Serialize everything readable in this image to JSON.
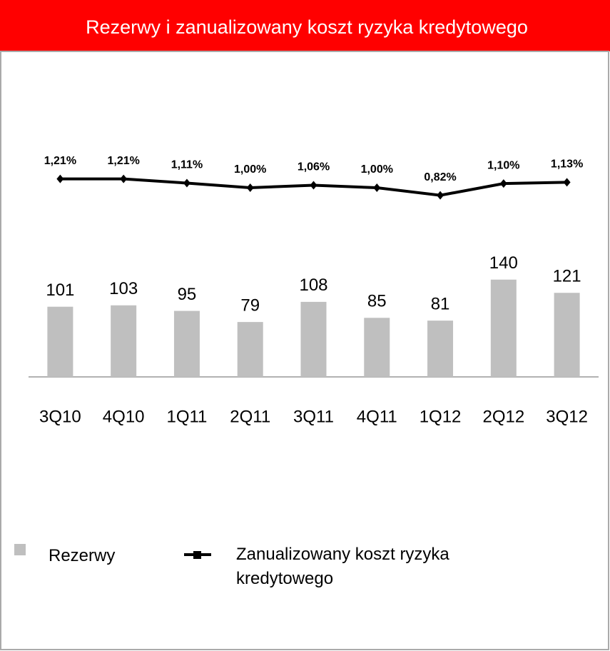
{
  "chart_data": {
    "type": "bar",
    "title": "Rezerwy i zanualizowany koszt ryzyka kredytowego",
    "categories": [
      "3Q10",
      "4Q10",
      "1Q11",
      "2Q11",
      "3Q11",
      "4Q11",
      "1Q12",
      "2Q12",
      "3Q12"
    ],
    "series": [
      {
        "name": "Rezerwy",
        "color": "#bfbfbf",
        "values": [
          101,
          103,
          95,
          79,
          108,
          85,
          81,
          140,
          121
        ]
      },
      {
        "name": "Zanualizowany koszt ryzyka kredytowego",
        "color": "#000000",
        "axis": "y2",
        "type": "line",
        "values": [
          1.21,
          1.21,
          1.11,
          1.0,
          1.06,
          1.0,
          0.82,
          1.1,
          1.13
        ],
        "value_labels": [
          "1,21%",
          "1,21%",
          "1,11%",
          "1,00%",
          "1,06%",
          "1,00%",
          "0,82%",
          "1,10%",
          "1,13%"
        ]
      }
    ],
    "ylim": [
      0,
      150
    ],
    "y2lim": [
      0,
      2
    ],
    "legend": "bottom"
  }
}
